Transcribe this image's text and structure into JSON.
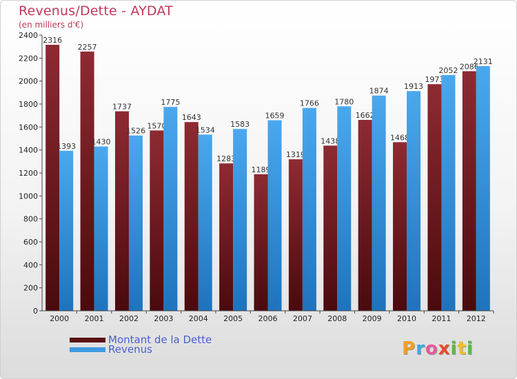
{
  "title": "Revenus/Dette - AYDAT",
  "subtitle": "(en milliers d'€)",
  "logo": "Proxiti",
  "colors": {
    "dette": "#7a1f24",
    "revenus": "#3f9ae0",
    "title": "#c0395a",
    "legend_text": "#4a5fd0"
  },
  "legend": [
    {
      "label": "Montant de la Dette",
      "color": "#7a1f24"
    },
    {
      "label": "Revenus",
      "color": "#3f9ae0"
    }
  ],
  "chart_data": {
    "type": "bar",
    "title": "Revenus/Dette - AYDAT",
    "subtitle": "(en milliers d'€)",
    "xlabel": "",
    "ylabel": "",
    "ylim": [
      0,
      2400
    ],
    "yticks": [
      0,
      200,
      400,
      600,
      800,
      1000,
      1200,
      1400,
      1600,
      1800,
      2000,
      2200,
      2400
    ],
    "grid": false,
    "legend_position": "bottom-left",
    "categories": [
      "2000",
      "2001",
      "2002",
      "2003",
      "2004",
      "2005",
      "2006",
      "2007",
      "2008",
      "2009",
      "2010",
      "2011",
      "2012"
    ],
    "series": [
      {
        "name": "Montant de la Dette",
        "values": [
          2316,
          2257,
          1737,
          1570,
          1643,
          1283,
          1189,
          1319,
          1438,
          1662,
          1468,
          1973,
          2086
        ]
      },
      {
        "name": "Revenus",
        "values": [
          1393,
          1430,
          1526,
          1775,
          1534,
          1583,
          1659,
          1766,
          1780,
          1874,
          1913,
          2052,
          2131
        ]
      }
    ]
  }
}
